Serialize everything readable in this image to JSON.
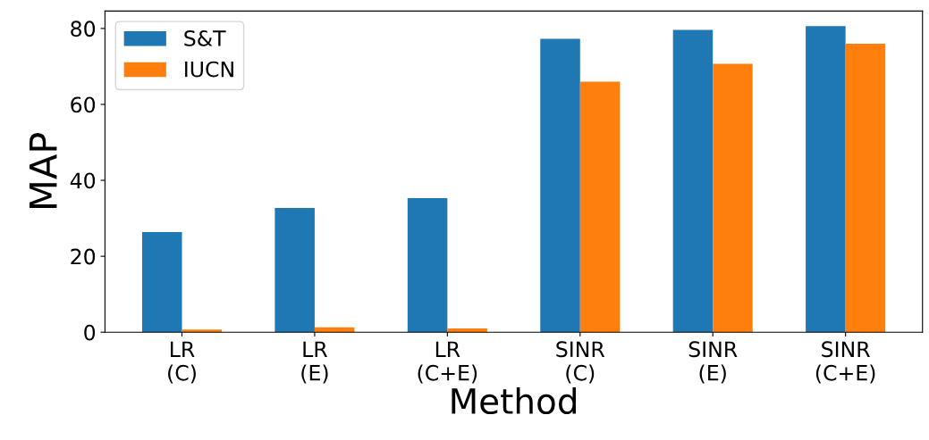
{
  "chart_data": {
    "type": "bar",
    "xlabel": "Method",
    "ylabel": "MAP",
    "categories": [
      "LR\n(C)",
      "LR\n(E)",
      "LR\n(C+E)",
      "SINR\n(C)",
      "SINR\n(E)",
      "SINR\n(C+E)"
    ],
    "series": [
      {
        "name": "S&T",
        "color": "#1f77b4",
        "values": [
          26.4,
          32.7,
          35.3,
          77.3,
          79.6,
          80.6
        ]
      },
      {
        "name": "IUCN",
        "color": "#ff7f0e",
        "values": [
          0.7,
          1.3,
          1.0,
          66.0,
          70.7,
          76.0
        ]
      }
    ],
    "ylim": [
      0,
      84.6
    ],
    "yticks": [
      0,
      20,
      40,
      60,
      80
    ],
    "legend": "top left",
    "grid": false
  }
}
